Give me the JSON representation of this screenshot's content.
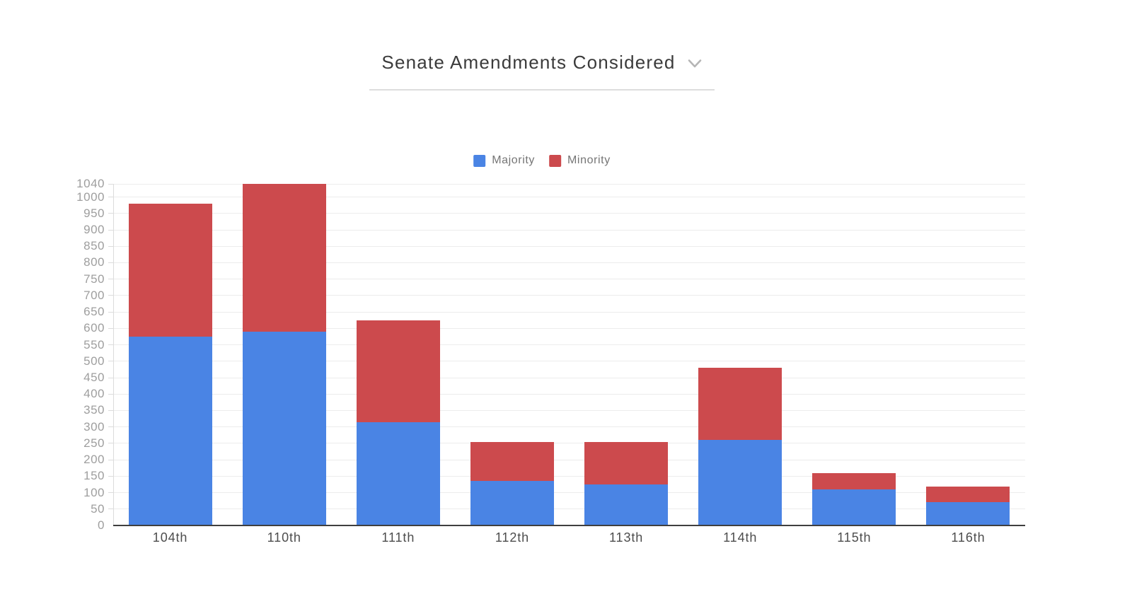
{
  "header": {
    "title": "Senate Amendments Considered",
    "dropdown_icon": "chevron-down"
  },
  "legend": {
    "position": "top-center",
    "items": [
      {
        "label": "Majority",
        "color": "#4a84e4"
      },
      {
        "label": "Minority",
        "color": "#cc4a4d"
      }
    ]
  },
  "chart_data": {
    "type": "bar",
    "stacked": true,
    "title": "Senate Amendments Considered",
    "xlabel": "",
    "ylabel": "",
    "categories": [
      "104th",
      "110th",
      "111th",
      "112th",
      "113th",
      "114th",
      "115th",
      "116th"
    ],
    "series": [
      {
        "name": "Majority",
        "color": "#4a84e4",
        "values": [
          575,
          590,
          315,
          135,
          125,
          260,
          110,
          70
        ]
      },
      {
        "name": "Minority",
        "color": "#cc4a4d",
        "values": [
          405,
          450,
          310,
          120,
          130,
          220,
          50,
          48
        ]
      }
    ],
    "stack_totals": [
      980,
      1040,
      625,
      255,
      255,
      480,
      160,
      118
    ],
    "ylim": [
      0,
      1040
    ],
    "y_ticks": [
      0,
      50,
      100,
      150,
      200,
      250,
      300,
      350,
      400,
      450,
      500,
      550,
      600,
      650,
      700,
      750,
      800,
      850,
      900,
      950,
      1000,
      1040
    ],
    "grid": true,
    "legend_position": "top"
  },
  "colors": {
    "background": "#ffffff",
    "grid": "#ececec",
    "axis_line": "#dcdcdc",
    "baseline": "#3f3f3f",
    "y_label": "#9e9e9e",
    "x_label": "#4d4d4d",
    "title": "#3b3b3b",
    "legend_text": "#757575",
    "divider": "#dddddd",
    "chevron": "#b5b5b5"
  }
}
